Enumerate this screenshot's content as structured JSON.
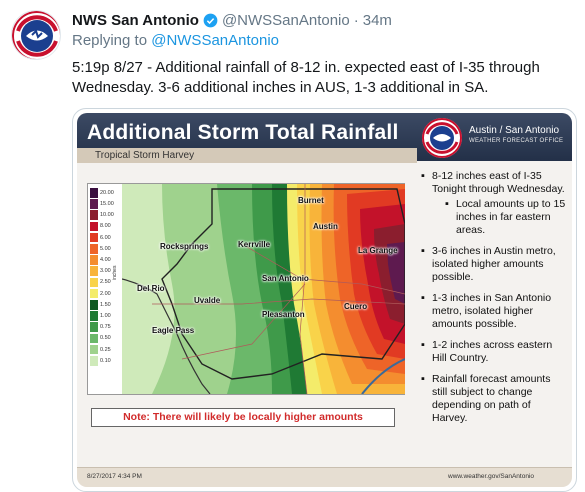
{
  "tweet": {
    "display_name": "NWS San Antonio",
    "handle": "@NWSSanAntonio",
    "separator": "·",
    "time": "34m",
    "replying_prefix": "Replying to",
    "replying_to": "@NWSSanAntonio",
    "text": "5:19p 8/27 - Additional rainfall of 8-12 in. expected east of I-35 through Wednesday. 3-6 additional inches in AUS, 1-3 additional in SA.",
    "verified_color": "#1da1f2",
    "link_color": "#1b95e0"
  },
  "graphic": {
    "title": "Additional Storm Total Rainfall",
    "subtitle": "Tropical Storm Harvey",
    "office_name": "Austin / San Antonio",
    "office_sub": "WEATHER FORECAST OFFICE",
    "note": "Note: There will likely be locally higher amounts",
    "note_color": "#d12b2b",
    "footer_date": "8/27/2017 4:34 PM",
    "footer_url": "www.weather.gov/SanAntonio",
    "legend_unit": "inches",
    "legend": [
      {
        "label": "20.00",
        "color": "#3a0f3f"
      },
      {
        "label": "15.00",
        "color": "#5e1a4f"
      },
      {
        "label": "10.00",
        "color": "#8b1e2e"
      },
      {
        "label": "8.00",
        "color": "#c3122a"
      },
      {
        "label": "6.00",
        "color": "#e13a23"
      },
      {
        "label": "5.00",
        "color": "#ee6428"
      },
      {
        "label": "4.00",
        "color": "#f48d2f"
      },
      {
        "label": "3.00",
        "color": "#f8b43a"
      },
      {
        "label": "2.50",
        "color": "#f9d34a"
      },
      {
        "label": "2.00",
        "color": "#f4ec6a"
      },
      {
        "label": "1.50",
        "color": "#0f5a22"
      },
      {
        "label": "1.00",
        "color": "#1f7a34"
      },
      {
        "label": "0.75",
        "color": "#3f9a4a"
      },
      {
        "label": "0.50",
        "color": "#6bb86a"
      },
      {
        "label": "0.25",
        "color": "#9fd28d"
      },
      {
        "label": "0.10",
        "color": "#cfeaba"
      }
    ],
    "cities": {
      "burnet": "Burnet",
      "austin": "Austin",
      "rocksprings": "Rocksprings",
      "kerrville": "Kerrville",
      "la_grange": "La Grange",
      "san_antonio": "San Antonio",
      "del_rio": "Del Rio",
      "uvalde": "Uvalde",
      "cuero": "Cuero",
      "pleasanton": "Pleasanton",
      "eagle_pass": "Eagle Pass"
    },
    "bullets": {
      "b1": "8-12 inches east of I-35 Tonight through Wednesday.",
      "b1_sub": "Local amounts up to 15 inches in far eastern areas.",
      "b2": "3-6 inches in Austin metro, isolated higher amounts possible.",
      "b3": "1-3 inches in San Antonio metro, isolated higher amounts possible.",
      "b4": "1-2 inches across eastern Hill Country.",
      "b5": "Rainfall forecast amounts still subject to change depending on path of Harvey."
    }
  }
}
